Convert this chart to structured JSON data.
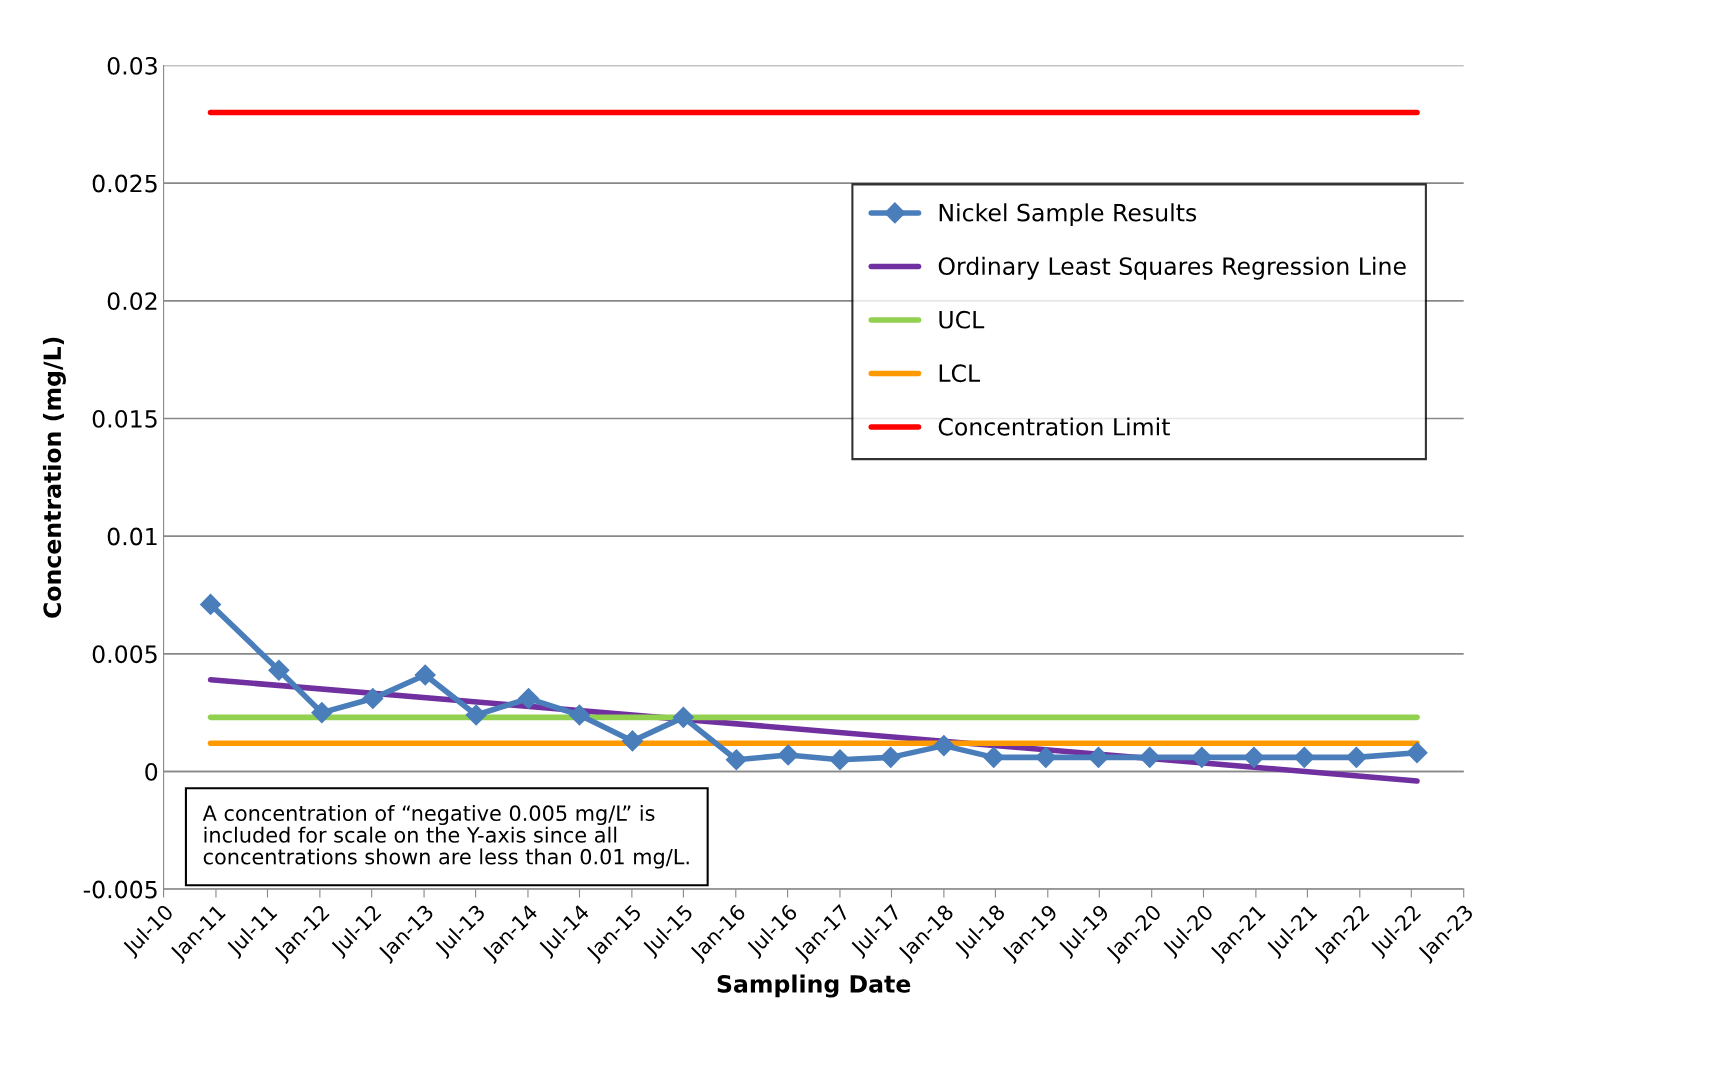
{
  "chart_data": {
    "type": "line",
    "xlabel": "Sampling Date",
    "ylabel": "Concentration (mg/L)",
    "series": [
      {
        "name": "Nickel Sample Results",
        "color": "#4a7ebb",
        "marker": "diamond",
        "x": [
          "2010-12-13",
          "2011-08-10",
          "2012-01-08",
          "2012-07-05",
          "2013-01-05",
          "2013-07-03",
          "2014-01-03",
          "2014-07-01",
          "2015-01-03",
          "2015-07-01",
          "2016-01-03",
          "2016-07-03",
          "2017-01-01",
          "2017-06-28",
          "2018-01-01",
          "2018-06-25",
          "2018-12-25",
          "2019-06-28",
          "2019-12-25",
          "2020-06-25",
          "2020-12-25",
          "2021-06-20",
          "2021-12-20",
          "2022-07-21"
        ],
        "values": [
          0.0071,
          0.0043,
          0.0025,
          0.0031,
          0.0041,
          0.0024,
          0.0031,
          0.0024,
          0.0013,
          0.0023,
          0.0005,
          0.0007,
          0.0005,
          0.0006,
          0.0011,
          0.0006,
          0.0006,
          0.0006,
          0.0006,
          0.0006,
          0.0006,
          0.0006,
          0.0006,
          0.0008
        ]
      },
      {
        "name": "Ordinary Least Squares Regression Line",
        "color": "#7030a0",
        "marker": "none",
        "x": [
          "2010-12-13",
          "2022-07-21"
        ],
        "values": [
          0.0039,
          -0.0004
        ]
      },
      {
        "name": "UCL",
        "color": "#92d050",
        "marker": "none",
        "x": [
          "2010-12-13",
          "2022-07-21"
        ],
        "values": [
          0.0023,
          0.0023
        ]
      },
      {
        "name": "LCL",
        "color": "#ff9900",
        "marker": "none",
        "x": [
          "2010-12-13",
          "2022-07-21"
        ],
        "values": [
          0.0012,
          0.0012
        ]
      },
      {
        "name": "Concentration Limit",
        "color": "#ff0000",
        "marker": "none",
        "x": [
          "2010-12-13",
          "2022-07-21"
        ],
        "values": [
          0.028,
          0.028
        ]
      }
    ],
    "ylim": [
      -0.005,
      0.03
    ],
    "yticks": [
      -0.005,
      0,
      0.005,
      0.01,
      0.015,
      0.02,
      0.025,
      0.03
    ],
    "xlim": [
      "2010-07",
      "2023-01"
    ],
    "xticks": [
      {
        "value": "2010-07",
        "label": "Jul-10"
      },
      {
        "value": "2011-01",
        "label": "Jan-11"
      },
      {
        "value": "2011-07",
        "label": "Jul-11"
      },
      {
        "value": "2012-01",
        "label": "Jan-12"
      },
      {
        "value": "2012-07",
        "label": "Jul-12"
      },
      {
        "value": "2013-01",
        "label": "Jan-13"
      },
      {
        "value": "2013-07",
        "label": "Jul-13"
      },
      {
        "value": "2014-01",
        "label": "Jan-14"
      },
      {
        "value": "2014-07",
        "label": "Jul-14"
      },
      {
        "value": "2015-01",
        "label": "Jan-15"
      },
      {
        "value": "2015-07",
        "label": "Jul-15"
      },
      {
        "value": "2016-01",
        "label": "Jan-16"
      },
      {
        "value": "2016-07",
        "label": "Jul-16"
      },
      {
        "value": "2017-01",
        "label": "Jan-17"
      },
      {
        "value": "2017-07",
        "label": "Jul-17"
      },
      {
        "value": "2018-01",
        "label": "Jan-18"
      },
      {
        "value": "2018-07",
        "label": "Jul-18"
      },
      {
        "value": "2019-01",
        "label": "Jan-19"
      },
      {
        "value": "2019-07",
        "label": "Jul-19"
      },
      {
        "value": "2020-01",
        "label": "Jan-20"
      },
      {
        "value": "2020-07",
        "label": "Jul-20"
      },
      {
        "value": "2021-01",
        "label": "Jan-21"
      },
      {
        "value": "2021-07",
        "label": "Jul-21"
      },
      {
        "value": "2022-01",
        "label": "Jan-22"
      },
      {
        "value": "2022-07",
        "label": "Jul-22"
      },
      {
        "value": "2023-01",
        "label": "Jan-23"
      }
    ],
    "grid": "y",
    "legend": "top right",
    "annotations": [
      "A concentration of “negative 0.005 mg/L” is\nincluded for scale on the Y-axis since all\nconcentrations shown are less than 0.01 mg/L."
    ]
  }
}
